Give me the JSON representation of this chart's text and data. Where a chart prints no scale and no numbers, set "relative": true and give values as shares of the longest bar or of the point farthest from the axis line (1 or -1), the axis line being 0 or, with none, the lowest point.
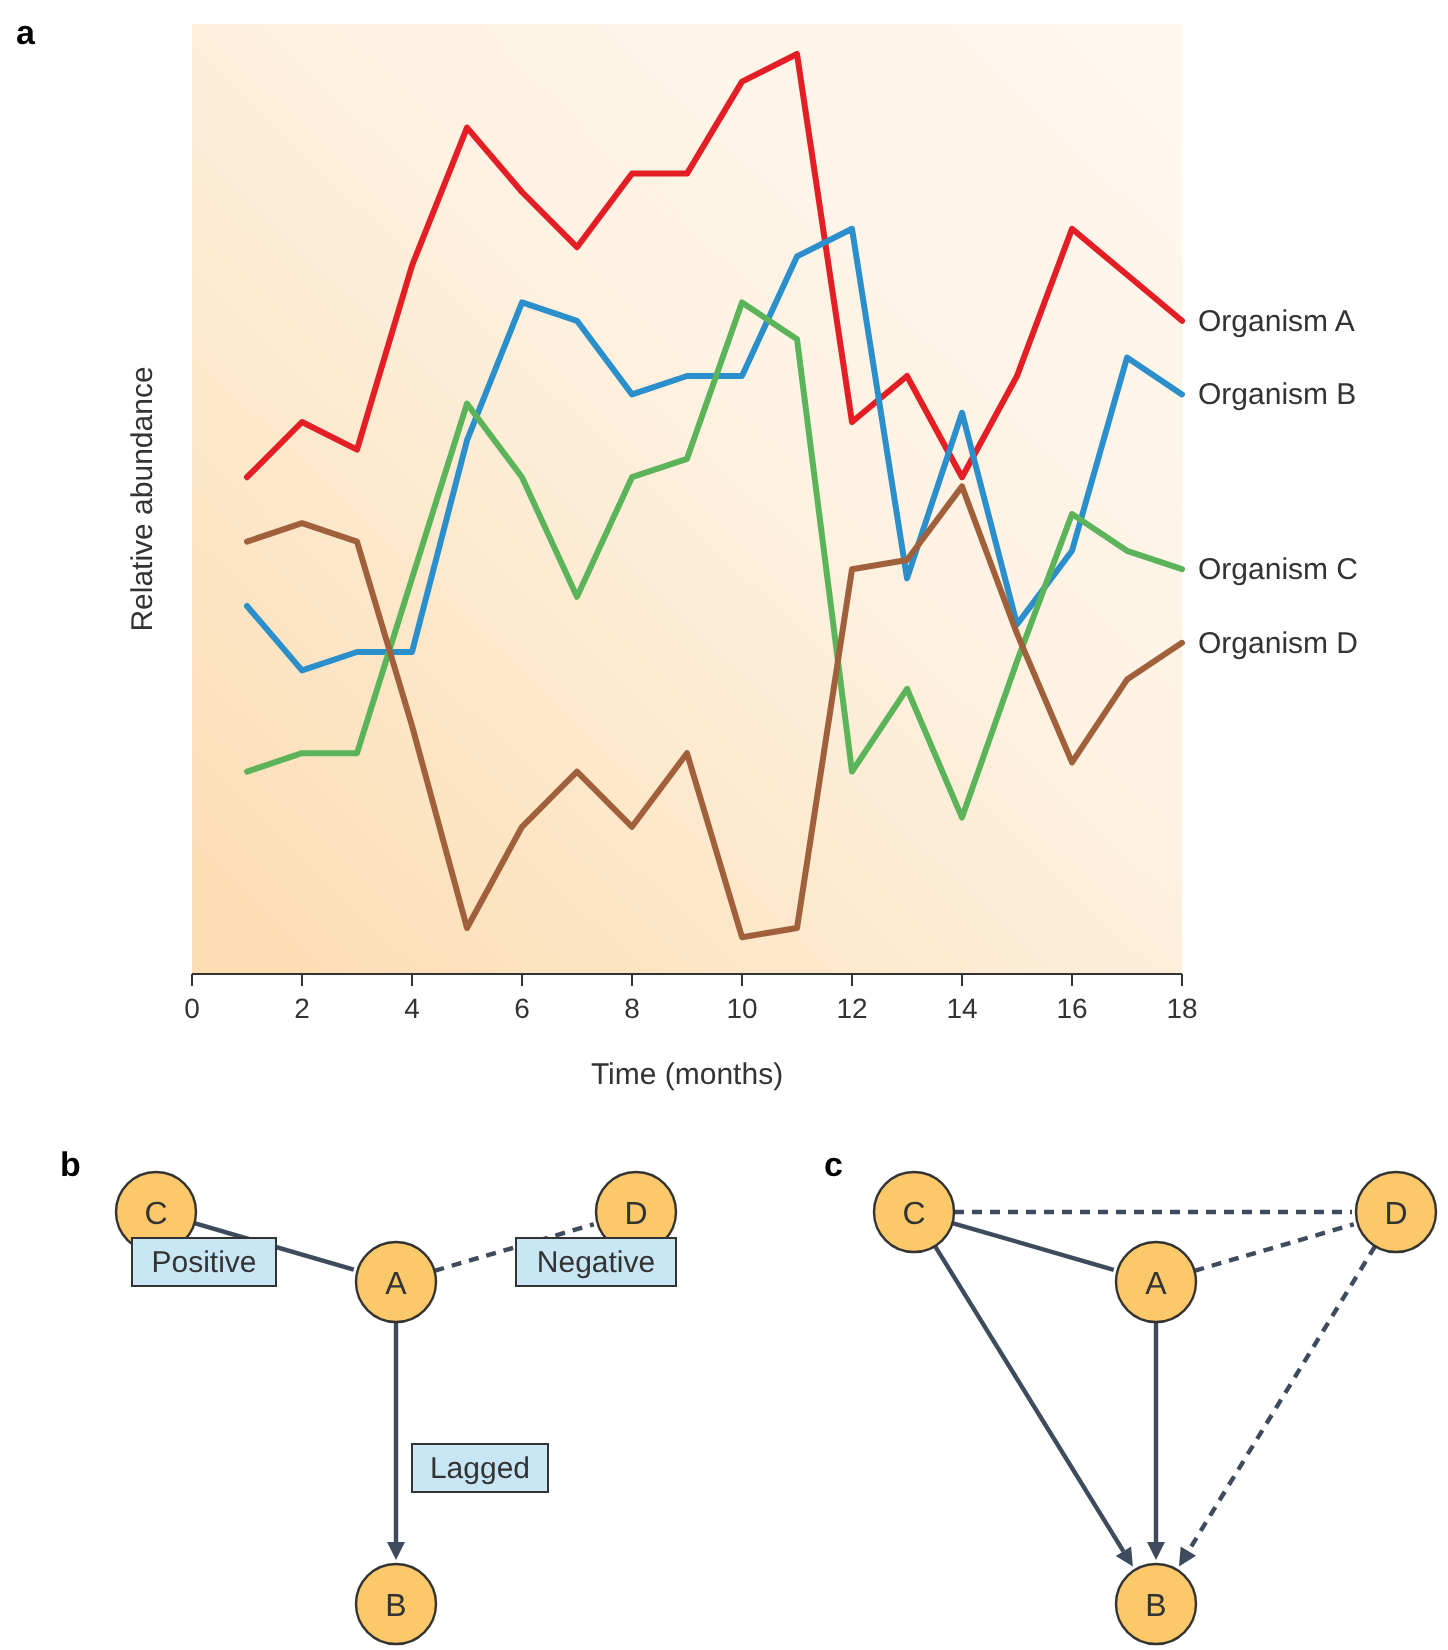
{
  "chart_data": [
    {
      "type": "line",
      "title": "a",
      "xlabel": "Time (months)",
      "ylabel": "Relative abundance",
      "relative": true,
      "xlim": [
        0,
        18
      ],
      "xticks": [
        0,
        2,
        4,
        6,
        8,
        10,
        12,
        14,
        16,
        18
      ],
      "x": [
        1,
        2,
        3,
        4,
        5,
        6,
        7,
        8,
        9,
        10,
        11,
        12,
        13,
        14,
        15,
        16,
        17,
        18
      ],
      "series": [
        {
          "name": "Organism A",
          "color": "#e31e24",
          "values": [
            0.54,
            0.6,
            0.57,
            0.77,
            0.92,
            0.85,
            0.79,
            0.87,
            0.87,
            0.97,
            1,
            0.6,
            0.65,
            0.54,
            0.65,
            0.81,
            0.76,
            0.71
          ]
        },
        {
          "name": "Organism B",
          "color": "#2b8fcc",
          "values": [
            0.4,
            0.33,
            0.35,
            0.35,
            0.58,
            0.73,
            0.71,
            0.63,
            0.65,
            0.65,
            0.78,
            0.81,
            0.43,
            0.61,
            0.38,
            0.46,
            0.67,
            0.63
          ]
        },
        {
          "name": "Organism C",
          "color": "#5bb35a",
          "values": [
            0.22,
            0.24,
            0.24,
            0.43,
            0.62,
            0.54,
            0.41,
            0.54,
            0.56,
            0.73,
            0.69,
            0.22,
            0.31,
            0.17,
            0.34,
            0.5,
            0.46,
            0.44
          ]
        },
        {
          "name": "Organism D",
          "color": "#a0603c",
          "values": [
            0.47,
            0.49,
            0.47,
            0.27,
            0.05,
            0.16,
            0.22,
            0.16,
            0.24,
            0.04,
            0.05,
            0.44,
            0.45,
            0.53,
            0.37,
            0.23,
            0.32,
            0.36
          ]
        }
      ]
    },
    {
      "type": "other",
      "title": "b",
      "annotations": [
        "C",
        "A",
        "D",
        "B",
        "Positive",
        "Negative",
        "Lagged"
      ]
    },
    {
      "type": "other",
      "title": "c",
      "annotations": [
        "C",
        "A",
        "D",
        "B"
      ]
    }
  ]
}
